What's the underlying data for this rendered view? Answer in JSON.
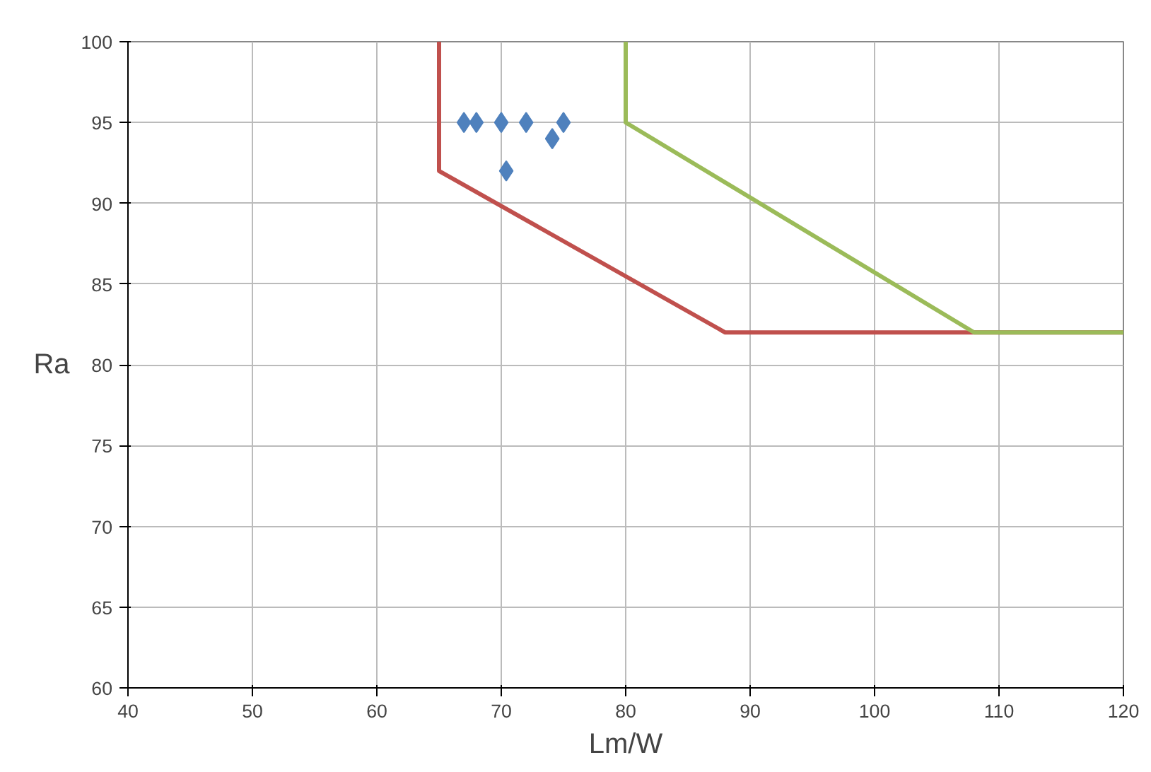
{
  "chart_data": {
    "type": "scatter",
    "xlabel": "Lm/W",
    "ylabel": "Ra",
    "xlim": [
      40,
      120
    ],
    "ylim": [
      60,
      100
    ],
    "xticks": [
      40,
      50,
      60,
      70,
      80,
      90,
      100,
      110,
      120
    ],
    "yticks": [
      60,
      65,
      70,
      75,
      80,
      85,
      90,
      95,
      100
    ],
    "grid": true,
    "series": [
      {
        "marker": "diamond",
        "color": "#4f81bd",
        "x": [
          67,
          68,
          70,
          72,
          75,
          70.4,
          74.1
        ],
        "values": [
          95,
          95,
          95,
          95,
          95,
          92,
          94
        ]
      },
      {
        "type": "line",
        "marker": "none",
        "color": "#c0504d",
        "x": [
          65,
          65,
          88,
          120
        ],
        "values": [
          100,
          92,
          82,
          82
        ]
      },
      {
        "type": "line",
        "marker": "none",
        "color": "#9bbb59",
        "x": [
          80,
          80,
          108,
          120
        ],
        "values": [
          100,
          95,
          82,
          82
        ]
      }
    ]
  }
}
